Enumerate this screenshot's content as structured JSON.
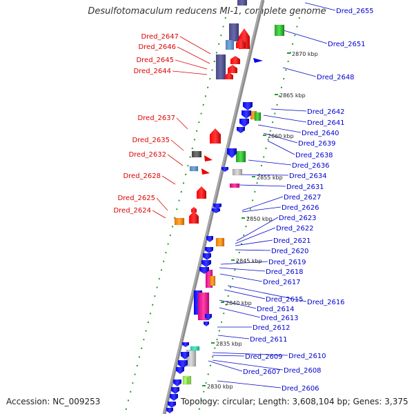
{
  "title": "Desulfotomaculum reducens MI-1, complete genome",
  "footer": {
    "accession": "Accession: NC_009253",
    "topology": "Topology: circular; Length: 3,608,104 bp; Genes: 3,375"
  },
  "colors": {
    "left_label": "#dd0000",
    "right_label": "#0000cc",
    "backbone": "#888888",
    "tick": "#228822"
  },
  "kbp_ticks": [
    "2870 kbp",
    "2865 kbp",
    "2860 kbp",
    "2855 kbp",
    "2850 kbp",
    "2845 kbp",
    "2840 kbp",
    "2835 kbp",
    "2830 kbp"
  ],
  "left_labels": [
    "Dred_2647",
    "Dred_2646",
    "Dred_2645",
    "Dred_2644",
    "Dred_2637",
    "Dred_2635",
    "Dred_2632",
    "Dred_2628",
    "Dred_2625",
    "Dred_2624"
  ],
  "right_labels": [
    "Dred_2655",
    "Dred_2651",
    "Dred_2648",
    "Dred_2642",
    "Dred_2641",
    "Dred_2640",
    "Dred_2639",
    "Dred_2638",
    "Dred_2636",
    "Dred_2634",
    "Dred_2631",
    "Dred_2627",
    "Dred_2626",
    "Dred_2623",
    "Dred_2622",
    "Dred_2621",
    "Dred_2620",
    "Dred_2619",
    "Dred_2618",
    "Dred_2617",
    "Dred_2615",
    "Dred_2616",
    "Dred_2614",
    "Dred_2613",
    "Dred_2612",
    "Dred_2611",
    "Dred_2609",
    "Dred_2610",
    "Dred_2608",
    "Dred_2607",
    "Dred_2606"
  ]
}
